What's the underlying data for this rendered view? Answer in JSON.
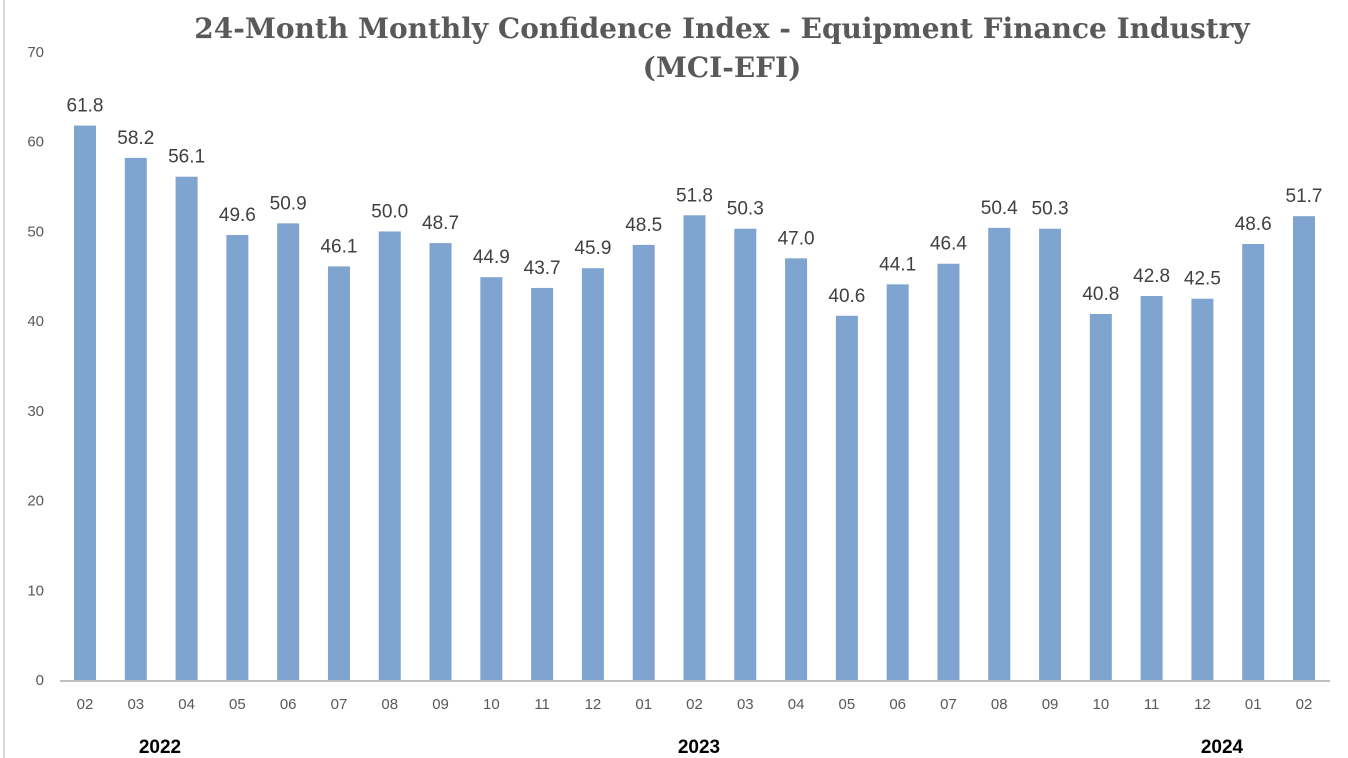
{
  "chart_data": {
    "type": "bar",
    "title": "24-Month Monthly Confidence Index - Equipment Finance Industry (MCI-EFI)",
    "title_lines": [
      "24-Month Monthly Confidence Index - Equipment Finance Industry",
      "(MCI-EFI)"
    ],
    "categories": [
      "02",
      "03",
      "04",
      "05",
      "06",
      "07",
      "08",
      "09",
      "10",
      "11",
      "12",
      "01",
      "02",
      "03",
      "04",
      "05",
      "06",
      "07",
      "08",
      "09",
      "10",
      "11",
      "12",
      "01",
      "02"
    ],
    "values": [
      61.8,
      58.2,
      56.1,
      49.6,
      50.9,
      46.1,
      50.0,
      48.7,
      44.9,
      43.7,
      45.9,
      48.5,
      51.8,
      50.3,
      47.0,
      40.6,
      44.1,
      46.4,
      50.4,
      50.3,
      40.8,
      42.8,
      42.5,
      48.6,
      51.7
    ],
    "value_labels": [
      "61.8",
      "58.2",
      "56.1",
      "49.6",
      "50.9",
      "46.1",
      "50.0",
      "48.7",
      "44.9",
      "43.7",
      "45.9",
      "48.5",
      "51.8",
      "50.3",
      "47.0",
      "40.6",
      "44.1",
      "46.4",
      "50.4",
      "50.3",
      "40.8",
      "42.8",
      "42.5",
      "48.6",
      "51.7"
    ],
    "year_groups": [
      {
        "label": "2022",
        "start": 0,
        "end": 10
      },
      {
        "label": "2023",
        "start": 11,
        "end": 22
      },
      {
        "label": "2024",
        "start": 23,
        "end": 24
      }
    ],
    "ylim": [
      0,
      70
    ],
    "yticks": [
      "0",
      "10",
      "20",
      "30",
      "40",
      "50",
      "60",
      "70"
    ],
    "xlabel": "",
    "ylabel": "",
    "grid": false,
    "legend": "none",
    "colors": {
      "bar": "#7FA4CF",
      "axis": "#bfbfbf"
    }
  }
}
